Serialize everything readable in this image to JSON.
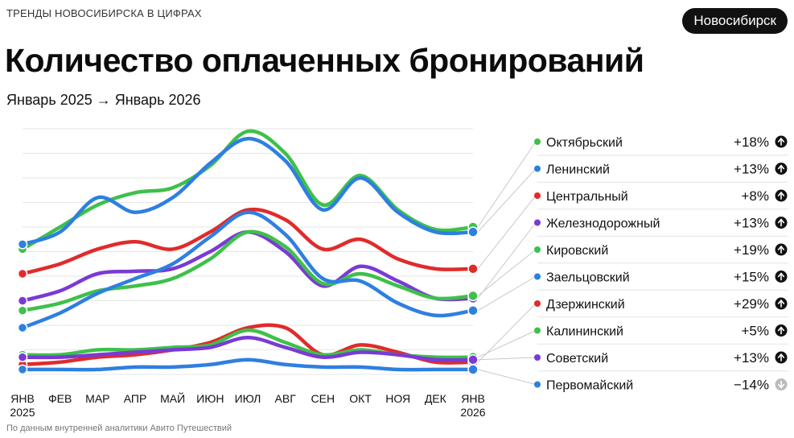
{
  "header": {
    "kicker": "ТРЕНДЫ НОВОСИБИРСКА В ЦИФРАХ",
    "city": "Новосибирск",
    "title": "Количество оплаченных бронирований",
    "period": "Январь 2025 → Январь 2026"
  },
  "footer": {
    "source": "По данным внутренней аналитики Авито Путешествий"
  },
  "colors": {
    "green": "#3ec04a",
    "blue": "#2e7fe0",
    "red": "#e02b2b",
    "purple": "#7a3ad6",
    "up_badge": "#111111",
    "down_badge": "#bbbbbb"
  },
  "chart_data": {
    "type": "line",
    "title": "Количество оплаченных бронирований",
    "xlabel": "",
    "ylabel": "",
    "ylim": [
      0,
      100
    ],
    "categories": [
      "ЯНВ 2025",
      "ФЕВ",
      "МАР",
      "АПР",
      "МАЙ",
      "ИЮН",
      "ИЮЛ",
      "АВГ",
      "СЕН",
      "ОКТ",
      "НОЯ",
      "ДЕК",
      "ЯНВ 2026"
    ],
    "x_tick_labels": [
      {
        "top": "ЯНВ",
        "bottom": "2025"
      },
      {
        "top": "ФЕВ",
        "bottom": ""
      },
      {
        "top": "МАР",
        "bottom": ""
      },
      {
        "top": "АПР",
        "bottom": ""
      },
      {
        "top": "МАЙ",
        "bottom": ""
      },
      {
        "top": "ИЮН",
        "bottom": ""
      },
      {
        "top": "ИЮЛ",
        "bottom": ""
      },
      {
        "top": "АВГ",
        "bottom": ""
      },
      {
        "top": "СЕН",
        "bottom": ""
      },
      {
        "top": "ОКТ",
        "bottom": ""
      },
      {
        "top": "НОЯ",
        "bottom": ""
      },
      {
        "top": "ДЕК",
        "bottom": ""
      },
      {
        "top": "ЯНВ",
        "bottom": "2026"
      }
    ],
    "series": [
      {
        "name": "Октябрьский",
        "color": "green",
        "change": "+18%",
        "trend": "up",
        "values": [
          51,
          60,
          69,
          74,
          76,
          85,
          99,
          90,
          69,
          81,
          67,
          59,
          60
        ]
      },
      {
        "name": "Ленинский",
        "color": "blue",
        "change": "+13%",
        "trend": "up",
        "values": [
          53,
          58,
          72,
          66,
          72,
          86,
          96,
          87,
          67,
          80,
          66,
          58,
          58
        ]
      },
      {
        "name": "Центральный",
        "color": "red",
        "change": "+8%",
        "trend": "up",
        "values": [
          41,
          45,
          51,
          54,
          51,
          58,
          67,
          63,
          51,
          55,
          47,
          43,
          43
        ]
      },
      {
        "name": "Железнодорожный",
        "color": "purple",
        "change": "+13%",
        "trend": "up",
        "values": [
          30,
          34,
          41,
          42,
          43,
          50,
          58,
          50,
          36,
          44,
          38,
          31,
          31
        ]
      },
      {
        "name": "Кировский",
        "color": "green",
        "change": "+19%",
        "trend": "up",
        "values": [
          26,
          29,
          34,
          36,
          39,
          47,
          58,
          52,
          37,
          41,
          36,
          31,
          32
        ]
      },
      {
        "name": "Заельцовский",
        "color": "blue",
        "change": "+15%",
        "trend": "up",
        "values": [
          19,
          25,
          33,
          39,
          45,
          56,
          66,
          57,
          39,
          38,
          29,
          24,
          26
        ]
      },
      {
        "name": "Дзержинский",
        "color": "red",
        "change": "+29%",
        "trend": "up",
        "values": [
          4,
          5,
          7,
          8,
          10,
          13,
          19,
          19,
          8,
          12,
          9,
          5,
          5
        ]
      },
      {
        "name": "Калининский",
        "color": "green",
        "change": "+5%",
        "trend": "up",
        "values": [
          8,
          8,
          10,
          10,
          11,
          12,
          18,
          13,
          8,
          10,
          8,
          7,
          7
        ]
      },
      {
        "name": "Советский",
        "color": "purple",
        "change": "+13%",
        "trend": "up",
        "values": [
          7,
          7,
          8,
          9,
          10,
          11,
          15,
          11,
          7,
          9,
          8,
          6,
          6
        ]
      },
      {
        "name": "Первомайский",
        "color": "blue",
        "change": "−14%",
        "trend": "down",
        "values": [
          2,
          2,
          2,
          3,
          3,
          4,
          6,
          4,
          3,
          3,
          2,
          2,
          2
        ]
      }
    ]
  }
}
